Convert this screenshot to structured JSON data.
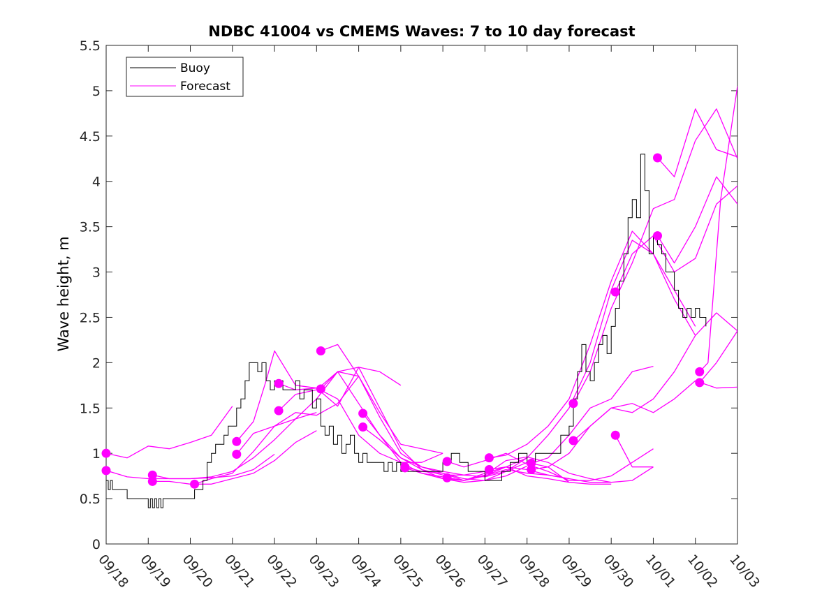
{
  "chart_data": {
    "type": "line",
    "title": "NDBC 41004 vs CMEMS Waves: 7 to 10 day forecast",
    "xlabel": "",
    "ylabel": "Wave height, m",
    "xlim": [
      0,
      15
    ],
    "ylim": [
      0,
      5.5
    ],
    "yticks": [
      0,
      0.5,
      1,
      1.5,
      2,
      2.5,
      3,
      3.5,
      4,
      4.5,
      5,
      5.5
    ],
    "ytick_labels": [
      "0",
      "0.5",
      "1",
      "1.5",
      "2",
      "2.5",
      "3",
      "3.5",
      "4",
      "4.5",
      "5",
      "5.5"
    ],
    "xticks": [
      0,
      1,
      2,
      3,
      4,
      5,
      6,
      7,
      8,
      9,
      10,
      11,
      12,
      13,
      14,
      15
    ],
    "xtick_labels": [
      "09/18",
      "09/19",
      "09/20",
      "09/21",
      "09/22",
      "09/23",
      "09/24",
      "09/25",
      "09/26",
      "09/27",
      "09/28",
      "09/29",
      "09/30",
      "10/01",
      "10/02",
      "10/03"
    ],
    "legend": {
      "position": "top-left",
      "entries": [
        {
          "label": "Buoy",
          "color": "#000000"
        },
        {
          "label": "Forecast",
          "color": "#ff00ff"
        }
      ]
    },
    "colors": {
      "buoy": "#000000",
      "forecast": "#ff00ff",
      "axes": "#262626"
    },
    "buoy": {
      "name": "Buoy",
      "x": [
        0,
        0.05,
        0.1,
        0.15,
        0.2,
        0.3,
        0.4,
        0.5,
        0.6,
        0.8,
        0.9,
        1.0,
        1.05,
        1.1,
        1.15,
        1.2,
        1.25,
        1.3,
        1.35,
        1.4,
        1.5,
        1.6,
        1.8,
        1.9,
        2.0,
        2.1,
        2.2,
        2.3,
        2.4,
        2.5,
        2.6,
        2.7,
        2.8,
        2.9,
        3.0,
        3.1,
        3.2,
        3.3,
        3.4,
        3.5,
        3.6,
        3.7,
        3.8,
        3.9,
        4.0,
        4.1,
        4.2,
        4.3,
        4.4,
        4.5,
        4.6,
        4.7,
        4.8,
        4.9,
        5.0,
        5.1,
        5.2,
        5.3,
        5.4,
        5.5,
        5.6,
        5.7,
        5.8,
        5.9,
        6.0,
        6.1,
        6.2,
        6.3,
        6.4,
        6.5,
        6.6,
        6.7,
        6.8,
        6.9,
        7.0,
        7.2,
        7.4,
        7.6,
        7.8,
        8.0,
        8.2,
        8.4,
        8.6,
        8.8,
        9.0,
        9.2,
        9.4,
        9.6,
        9.8,
        10.0,
        10.2,
        10.4,
        10.6,
        10.8,
        11.0,
        11.1,
        11.2,
        11.3,
        11.4,
        11.5,
        11.6,
        11.7,
        11.8,
        11.9,
        12.0,
        12.1,
        12.2,
        12.3,
        12.4,
        12.5,
        12.6,
        12.7,
        12.8,
        12.9,
        13.0,
        13.1,
        13.2,
        13.3,
        13.4,
        13.5,
        13.6,
        13.7,
        13.8,
        13.9,
        14.0,
        14.1,
        14.2,
        14.25
      ],
      "values": [
        0.7,
        0.6,
        0.7,
        0.6,
        0.6,
        0.6,
        0.6,
        0.5,
        0.5,
        0.5,
        0.5,
        0.4,
        0.5,
        0.4,
        0.5,
        0.4,
        0.5,
        0.4,
        0.5,
        0.5,
        0.5,
        0.5,
        0.5,
        0.5,
        0.5,
        0.6,
        0.6,
        0.7,
        0.9,
        1.0,
        1.1,
        1.1,
        1.2,
        1.3,
        1.3,
        1.5,
        1.6,
        1.8,
        2.0,
        2.0,
        1.9,
        2.0,
        1.8,
        1.7,
        1.8,
        1.8,
        1.7,
        1.7,
        1.7,
        1.8,
        1.6,
        1.7,
        1.7,
        1.5,
        1.6,
        1.3,
        1.2,
        1.3,
        1.1,
        1.2,
        1.0,
        1.1,
        1.2,
        1.0,
        0.9,
        1.0,
        0.9,
        0.9,
        0.9,
        0.9,
        0.8,
        0.9,
        0.8,
        0.9,
        0.8,
        0.8,
        0.8,
        0.8,
        0.8,
        0.9,
        1.0,
        0.9,
        0.8,
        0.8,
        0.7,
        0.7,
        0.8,
        0.9,
        1.0,
        0.9,
        1.0,
        1.0,
        1.0,
        1.2,
        1.3,
        1.6,
        1.9,
        2.2,
        1.9,
        1.8,
        2.0,
        2.2,
        2.3,
        2.1,
        2.4,
        2.6,
        2.9,
        3.2,
        3.6,
        3.8,
        3.6,
        4.3,
        3.9,
        3.2,
        3.4,
        3.3,
        3.2,
        3.0,
        3.0,
        2.8,
        2.6,
        2.5,
        2.6,
        2.5,
        2.6,
        2.5,
        2.5,
        2.4
      ]
    },
    "forecasts": [
      {
        "name": "Forecast",
        "x": [
          0,
          0.5,
          1.0,
          1.5,
          2.0,
          2.5,
          3.0
        ],
        "values": [
          1.0,
          0.95,
          1.08,
          1.05,
          1.12,
          1.2,
          1.52
        ],
        "marker": [
          0,
          1.0
        ]
      },
      {
        "name": "Forecast",
        "x": [
          0,
          0.5,
          1.0,
          1.5,
          2.0,
          2.5,
          3.0,
          3.5,
          4.0
        ],
        "values": [
          0.81,
          0.74,
          0.72,
          0.72,
          0.72,
          0.73,
          0.75,
          0.82,
          0.99
        ],
        "marker": [
          0,
          0.81
        ]
      },
      {
        "name": "Forecast",
        "x": [
          1.1,
          1.5,
          2.0,
          2.5,
          3.0,
          3.5,
          4.0,
          4.5,
          5.0
        ],
        "values": [
          0.76,
          0.72,
          0.72,
          0.74,
          0.8,
          0.95,
          1.15,
          1.38,
          1.45
        ],
        "marker": [
          1.1,
          0.76
        ]
      },
      {
        "name": "Forecast",
        "x": [
          1.1,
          1.5,
          2.0,
          2.5,
          3.0,
          3.5,
          4.0,
          4.5,
          5.0
        ],
        "values": [
          0.69,
          0.69,
          0.66,
          0.66,
          0.72,
          0.78,
          0.92,
          1.12,
          1.25
        ],
        "marker": [
          1.1,
          0.69
        ]
      },
      {
        "name": "Forecast",
        "x": [
          2.1,
          2.5,
          3.0,
          3.5,
          4.0,
          4.5,
          5.0,
          5.5,
          6.0
        ],
        "values": [
          0.66,
          0.72,
          0.78,
          1.02,
          1.3,
          1.45,
          1.42,
          1.55,
          1.85
        ],
        "marker": [
          2.1,
          0.66
        ]
      },
      {
        "name": "Forecast",
        "x": [
          3.1,
          3.5,
          3.8,
          4.0,
          4.5,
          5.0,
          5.5,
          6.0,
          6.5,
          7.0
        ],
        "values": [
          1.13,
          1.35,
          1.8,
          2.13,
          1.75,
          1.72,
          1.52,
          1.95,
          1.9,
          1.75
        ],
        "marker": [
          3.1,
          1.13
        ]
      },
      {
        "name": "Forecast",
        "x": [
          3.1,
          3.5,
          4.0,
          4.5,
          5.0,
          5.5,
          6.0,
          6.5,
          7.0,
          7.5,
          8.0
        ],
        "values": [
          0.99,
          1.22,
          1.3,
          1.38,
          1.6,
          1.9,
          1.85,
          1.45,
          1.1,
          1.05,
          1.0
        ],
        "marker": [
          3.1,
          0.99
        ]
      },
      {
        "name": "Forecast",
        "x": [
          4.1,
          4.5,
          5.0,
          5.5,
          6.0,
          6.5,
          7.0,
          7.5,
          8.0
        ],
        "values": [
          1.77,
          1.7,
          1.72,
          1.6,
          1.2,
          1.0,
          0.9,
          0.9,
          1.0
        ],
        "marker": [
          4.1,
          1.77
        ]
      },
      {
        "name": "Forecast",
        "x": [
          4.1,
          4.5,
          5.0,
          5.5,
          6.0,
          6.5,
          7.0,
          7.5,
          8.0,
          8.5,
          9.0
        ],
        "values": [
          1.47,
          1.65,
          1.7,
          1.9,
          1.95,
          1.5,
          1.05,
          0.82,
          0.76,
          0.76,
          0.8
        ],
        "marker": [
          4.1,
          1.47
        ]
      },
      {
        "name": "Forecast",
        "x": [
          5.1,
          5.5,
          6.0,
          6.5,
          7.0,
          7.5,
          8.0,
          8.5,
          9.0,
          9.5,
          10.0
        ],
        "values": [
          2.13,
          2.2,
          1.85,
          1.4,
          1.0,
          0.85,
          0.8,
          0.76,
          0.74,
          0.8,
          0.95
        ],
        "marker": [
          5.1,
          2.13
        ]
      },
      {
        "name": "Forecast",
        "x": [
          5.1,
          5.5,
          6.0,
          6.5,
          7.0,
          7.5,
          8.0,
          8.5,
          9.0,
          9.5,
          10.0
        ],
        "values": [
          1.71,
          1.9,
          1.55,
          1.2,
          0.95,
          0.85,
          0.78,
          0.72,
          0.7,
          0.75,
          0.86
        ],
        "marker": [
          5.1,
          1.71
        ]
      },
      {
        "name": "Forecast",
        "x": [
          6.1,
          6.5,
          7.0,
          7.5,
          8.0,
          8.5,
          9.0,
          9.5,
          10.0,
          10.5,
          11.0
        ],
        "values": [
          1.44,
          1.2,
          0.9,
          0.78,
          0.72,
          0.7,
          0.75,
          0.85,
          0.82,
          0.76,
          0.72
        ],
        "marker": [
          6.1,
          1.44
        ]
      },
      {
        "name": "Forecast",
        "x": [
          6.1,
          6.5,
          7.0,
          7.5,
          8.0,
          8.5,
          9.0,
          9.5,
          10.0,
          10.5,
          11.0
        ],
        "values": [
          1.29,
          1.15,
          0.95,
          0.82,
          0.72,
          0.68,
          0.7,
          0.8,
          0.9,
          0.85,
          0.68
        ],
        "marker": [
          6.1,
          1.29
        ]
      },
      {
        "name": "Forecast",
        "x": [
          7.1,
          7.5,
          8.0,
          8.5,
          9.0,
          9.5,
          10.0,
          10.5,
          11.0,
          11.5,
          12.0
        ],
        "values": [
          0.84,
          0.78,
          0.74,
          0.7,
          0.78,
          0.85,
          0.75,
          0.72,
          0.68,
          0.66,
          0.66
        ],
        "marker": [
          7.1,
          0.84
        ]
      },
      {
        "name": "Forecast",
        "x": [
          7.1,
          7.5,
          8.0,
          8.5,
          9.0,
          9.5,
          10.0,
          10.5,
          11.0,
          11.5,
          12.0
        ],
        "values": [
          0.85,
          0.8,
          0.78,
          0.7,
          0.76,
          0.92,
          0.96,
          0.9,
          0.78,
          0.72,
          0.68
        ],
        "marker": [
          7.1,
          0.85
        ]
      },
      {
        "name": "Forecast",
        "x": [
          8.1,
          8.5,
          9.0,
          9.5,
          10.0,
          10.5,
          11.0,
          11.5,
          12.0,
          12.5,
          13.0
        ],
        "values": [
          0.91,
          0.85,
          0.92,
          1.0,
          0.88,
          0.8,
          0.7,
          0.7,
          0.75,
          0.9,
          1.05
        ],
        "marker": [
          8.1,
          0.91
        ]
      },
      {
        "name": "Forecast",
        "x": [
          8.1,
          8.5,
          9.0,
          9.5,
          10.0,
          10.5,
          11.0,
          11.5,
          12.0,
          12.5,
          13.0
        ],
        "values": [
          0.73,
          0.7,
          0.75,
          0.82,
          0.78,
          0.76,
          0.72,
          0.68,
          0.68,
          0.7,
          0.85
        ],
        "marker": [
          8.1,
          0.73
        ]
      },
      {
        "name": "Forecast",
        "x": [
          9.1,
          9.5,
          10.0,
          10.5,
          11.0,
          11.5,
          12.0,
          12.5,
          13.0,
          13.5,
          14.0
        ],
        "values": [
          0.95,
          0.98,
          1.1,
          1.3,
          1.6,
          2.2,
          2.9,
          3.45,
          3.2,
          2.7,
          2.3
        ],
        "marker": [
          9.1,
          0.95
        ]
      },
      {
        "name": "Forecast",
        "x": [
          9.1,
          9.5,
          10.0,
          10.5,
          11.0,
          11.5,
          12.0,
          12.5,
          13.0,
          13.5,
          14.0
        ],
        "values": [
          0.82,
          0.85,
          0.95,
          1.2,
          1.5,
          2.0,
          2.8,
          3.35,
          3.2,
          2.8,
          2.4
        ],
        "marker": [
          9.1,
          0.82
        ]
      },
      {
        "name": "Forecast",
        "x": [
          10.1,
          10.5,
          11.0,
          11.5,
          12.0,
          12.5,
          13.0
        ],
        "values": [
          0.89,
          0.95,
          1.2,
          1.5,
          1.6,
          1.9,
          1.96
        ],
        "marker": [
          10.1,
          0.89
        ]
      },
      {
        "name": "Forecast",
        "x": [
          10.1,
          10.5,
          11.0,
          11.5,
          12.0,
          12.5,
          13.0,
          13.5,
          14.0,
          14.5,
          15.0
        ],
        "values": [
          0.82,
          0.85,
          1.0,
          1.3,
          1.5,
          1.45,
          1.6,
          1.9,
          2.3,
          2.55,
          2.35
        ],
        "marker": [
          10.1,
          0.82
        ]
      },
      {
        "name": "Forecast",
        "x": [
          11.1,
          11.5,
          12.0,
          12.5,
          13.0,
          13.5,
          14.0,
          14.5,
          15.0
        ],
        "values": [
          1.55,
          1.9,
          2.6,
          3.1,
          3.7,
          3.8,
          4.45,
          4.8,
          4.25
        ],
        "marker": [
          11.1,
          1.55
        ]
      },
      {
        "name": "Forecast",
        "x": [
          11.1,
          11.5,
          12.0,
          12.5,
          13.0,
          13.5,
          14.0,
          14.5,
          15.0
        ],
        "values": [
          1.14,
          1.3,
          1.5,
          1.55,
          1.45,
          1.6,
          1.8,
          1.72,
          1.73
        ],
        "marker": [
          11.1,
          1.14
        ]
      },
      {
        "name": "Forecast",
        "x": [
          12.1,
          12.5,
          13.0,
          13.5,
          14.0,
          14.5,
          15.0
        ],
        "values": [
          2.78,
          3.2,
          3.4,
          3.0,
          3.15,
          3.75,
          3.95
        ],
        "marker": [
          12.1,
          2.78
        ]
      },
      {
        "name": "Forecast",
        "x": [
          12.1,
          12.5,
          13.0
        ],
        "values": [
          1.2,
          0.85,
          0.85
        ],
        "marker": [
          12.1,
          1.2
        ]
      },
      {
        "name": "Forecast",
        "x": [
          13.1,
          13.5,
          14.0,
          14.5,
          15.0
        ],
        "values": [
          4.26,
          4.05,
          4.8,
          4.35,
          4.27
        ],
        "marker": [
          13.1,
          4.26
        ]
      },
      {
        "name": "Forecast",
        "x": [
          13.1,
          13.5,
          14.0,
          14.5,
          15.0
        ],
        "values": [
          3.4,
          3.1,
          3.5,
          4.05,
          3.75
        ],
        "marker": [
          13.1,
          3.4
        ]
      },
      {
        "name": "Forecast",
        "x": [
          14.1,
          14.3,
          14.6,
          15.0
        ],
        "values": [
          1.9,
          2.0,
          3.8,
          5.05
        ],
        "marker": [
          14.1,
          1.9
        ]
      },
      {
        "name": "Forecast",
        "x": [
          14.1,
          14.5,
          15.0
        ],
        "values": [
          1.78,
          2.0,
          2.35
        ],
        "marker": [
          14.1,
          1.78
        ]
      }
    ]
  }
}
